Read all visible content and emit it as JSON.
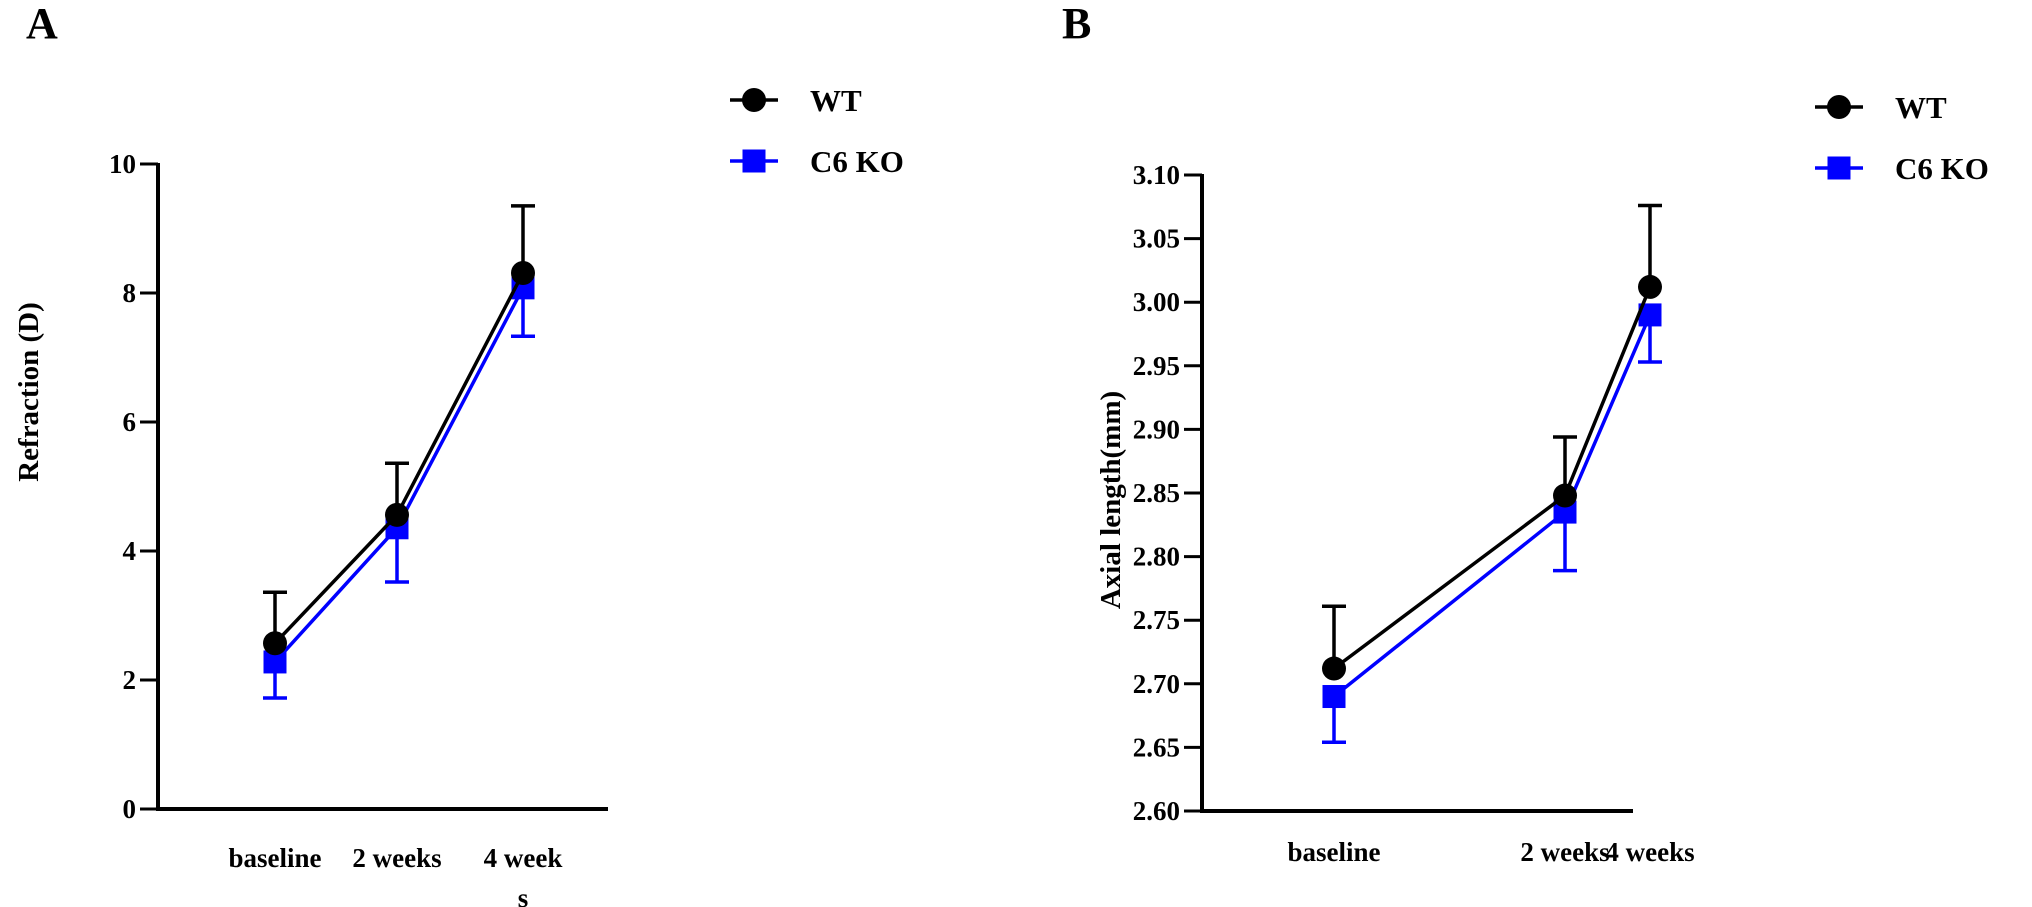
{
  "figure": {
    "panels": [
      "A",
      "B"
    ]
  },
  "chart_data": [
    {
      "panel": "A",
      "type": "line",
      "title": "",
      "xlabel": "",
      "ylabel": "Refraction (D)",
      "categories": [
        "baseline",
        "2 weeks",
        "4 week s"
      ],
      "category_lines": [
        [
          "baseline"
        ],
        [
          "2 weeks"
        ],
        [
          "4 week",
          "s"
        ]
      ],
      "ylim": [
        0,
        10
      ],
      "yticks": [
        0,
        2,
        4,
        6,
        8,
        10
      ],
      "ytick_labels": [
        "0",
        "2",
        "4",
        "6",
        "8",
        "10"
      ],
      "grid": false,
      "legend_position": "top-right",
      "error_bars": "one-sided (WT upward, C6 KO downward)",
      "series": [
        {
          "name": "WT",
          "color": "#000000",
          "marker": "circle",
          "values": [
            2.57,
            4.56,
            8.31
          ],
          "error": [
            0.79,
            0.8,
            1.04
          ],
          "error_direction": "up"
        },
        {
          "name": "C6 KO",
          "color": "#0000ff",
          "marker": "square",
          "values": [
            2.28,
            4.36,
            8.08
          ],
          "error": [
            0.56,
            0.84,
            0.75
          ],
          "error_direction": "down"
        }
      ]
    },
    {
      "panel": "B",
      "type": "line",
      "title": "",
      "xlabel": "",
      "ylabel": "Axial length(mm)",
      "categories": [
        "baseline",
        "2 weeks",
        "4 weeks"
      ],
      "category_lines": [
        [
          "baseline"
        ],
        [
          "2 weeks"
        ],
        [
          "4 weeks"
        ]
      ],
      "ylim": [
        2.6,
        3.1
      ],
      "yticks": [
        2.6,
        2.65,
        2.7,
        2.75,
        2.8,
        2.85,
        2.9,
        2.95,
        3.0,
        3.05,
        3.1
      ],
      "ytick_labels": [
        "2.60",
        "2.65",
        "2.70",
        "2.75",
        "2.80",
        "2.85",
        "2.90",
        "2.95",
        "3.00",
        "3.05",
        "3.10"
      ],
      "grid": false,
      "legend_position": "top-right",
      "error_bars": "one-sided (WT upward, C6 KO downward)",
      "series": [
        {
          "name": "WT",
          "color": "#000000",
          "marker": "circle",
          "values": [
            2.712,
            2.848,
            3.012
          ],
          "error": [
            0.049,
            0.046,
            0.064
          ],
          "error_direction": "up"
        },
        {
          "name": "C6 KO",
          "color": "#0000ff",
          "marker": "square",
          "values": [
            2.69,
            2.835,
            2.99
          ],
          "error": [
            0.036,
            0.046,
            0.037
          ],
          "error_direction": "down"
        }
      ]
    }
  ]
}
